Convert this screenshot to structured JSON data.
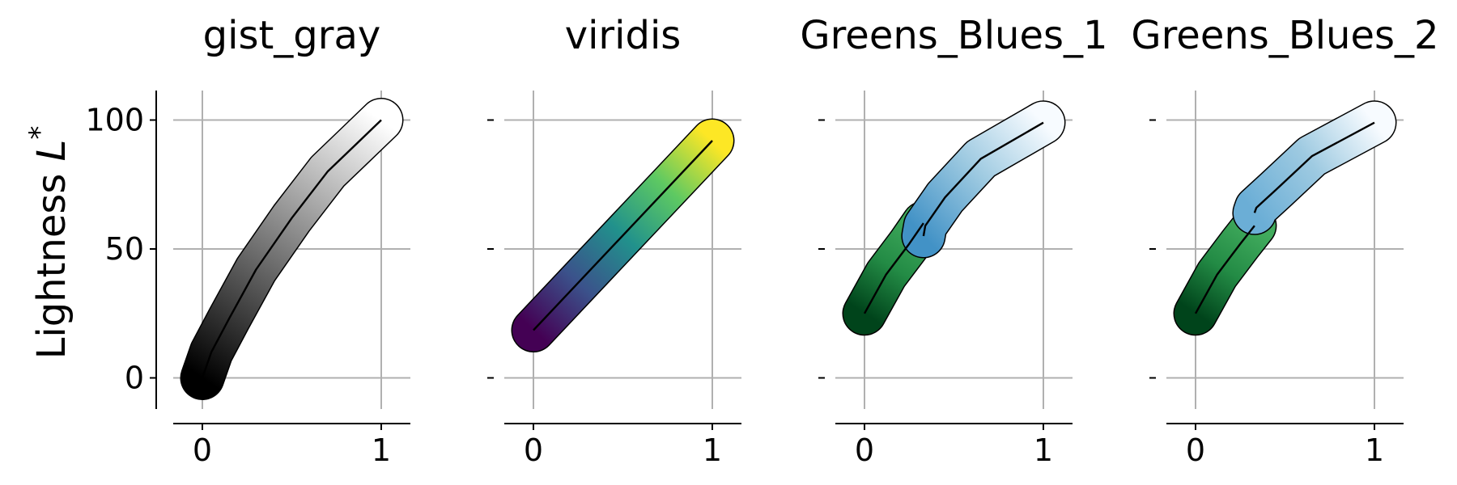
{
  "chart_data": {
    "type": "line",
    "ylabel": "Lightness L*",
    "yticks": [
      0,
      50,
      100
    ],
    "xticks": [
      0,
      1
    ],
    "ylim": [
      -12,
      112
    ],
    "xlim": [
      -0.16,
      1.16
    ],
    "grid": true,
    "panels": [
      {
        "title": "gist_gray",
        "series": [
          {
            "colors": [
              "#000000",
              "#ffffff"
            ],
            "x": [
              0,
              0.05,
              0.15,
              0.3,
              0.5,
              0.7,
              0.85,
              1.0
            ],
            "y": [
              0,
              10,
              23,
              42,
              62,
              80,
              90,
              100
            ]
          }
        ]
      },
      {
        "title": "viridis",
        "series": [
          {
            "colors": [
              "#440154",
              "#3b528b",
              "#21918c",
              "#5ec962",
              "#fde725"
            ],
            "x": [
              0,
              1.0
            ],
            "y": [
              18.5,
              92
            ]
          }
        ]
      },
      {
        "title": "Greens_Blues_1",
        "series": [
          {
            "colors": [
              "#00441b",
              "#238b45",
              "#41ab5d"
            ],
            "x": [
              0,
              0.12,
              0.25,
              0.33
            ],
            "y": [
              25,
              40,
              52,
              60
            ]
          },
          {
            "colors": [
              "#4292c6",
              "#9ecae1",
              "#f7fbff"
            ],
            "x": [
              0.33,
              0.34,
              0.45,
              0.65,
              1.0
            ],
            "y": [
              55,
              59,
              70,
              85,
              99
            ]
          }
        ]
      },
      {
        "title": "Greens_Blues_2",
        "series": [
          {
            "colors": [
              "#00441b",
              "#238b45",
              "#41ab5d"
            ],
            "x": [
              0,
              0.12,
              0.25,
              0.33
            ],
            "y": [
              25,
              40,
              52,
              59
            ]
          },
          {
            "colors": [
              "#6baed6",
              "#9ecae1",
              "#f7fbff"
            ],
            "x": [
              0.33,
              0.34,
              0.45,
              0.65,
              1.0
            ],
            "y": [
              64,
              66,
              73,
              86,
              99
            ]
          }
        ]
      }
    ]
  }
}
